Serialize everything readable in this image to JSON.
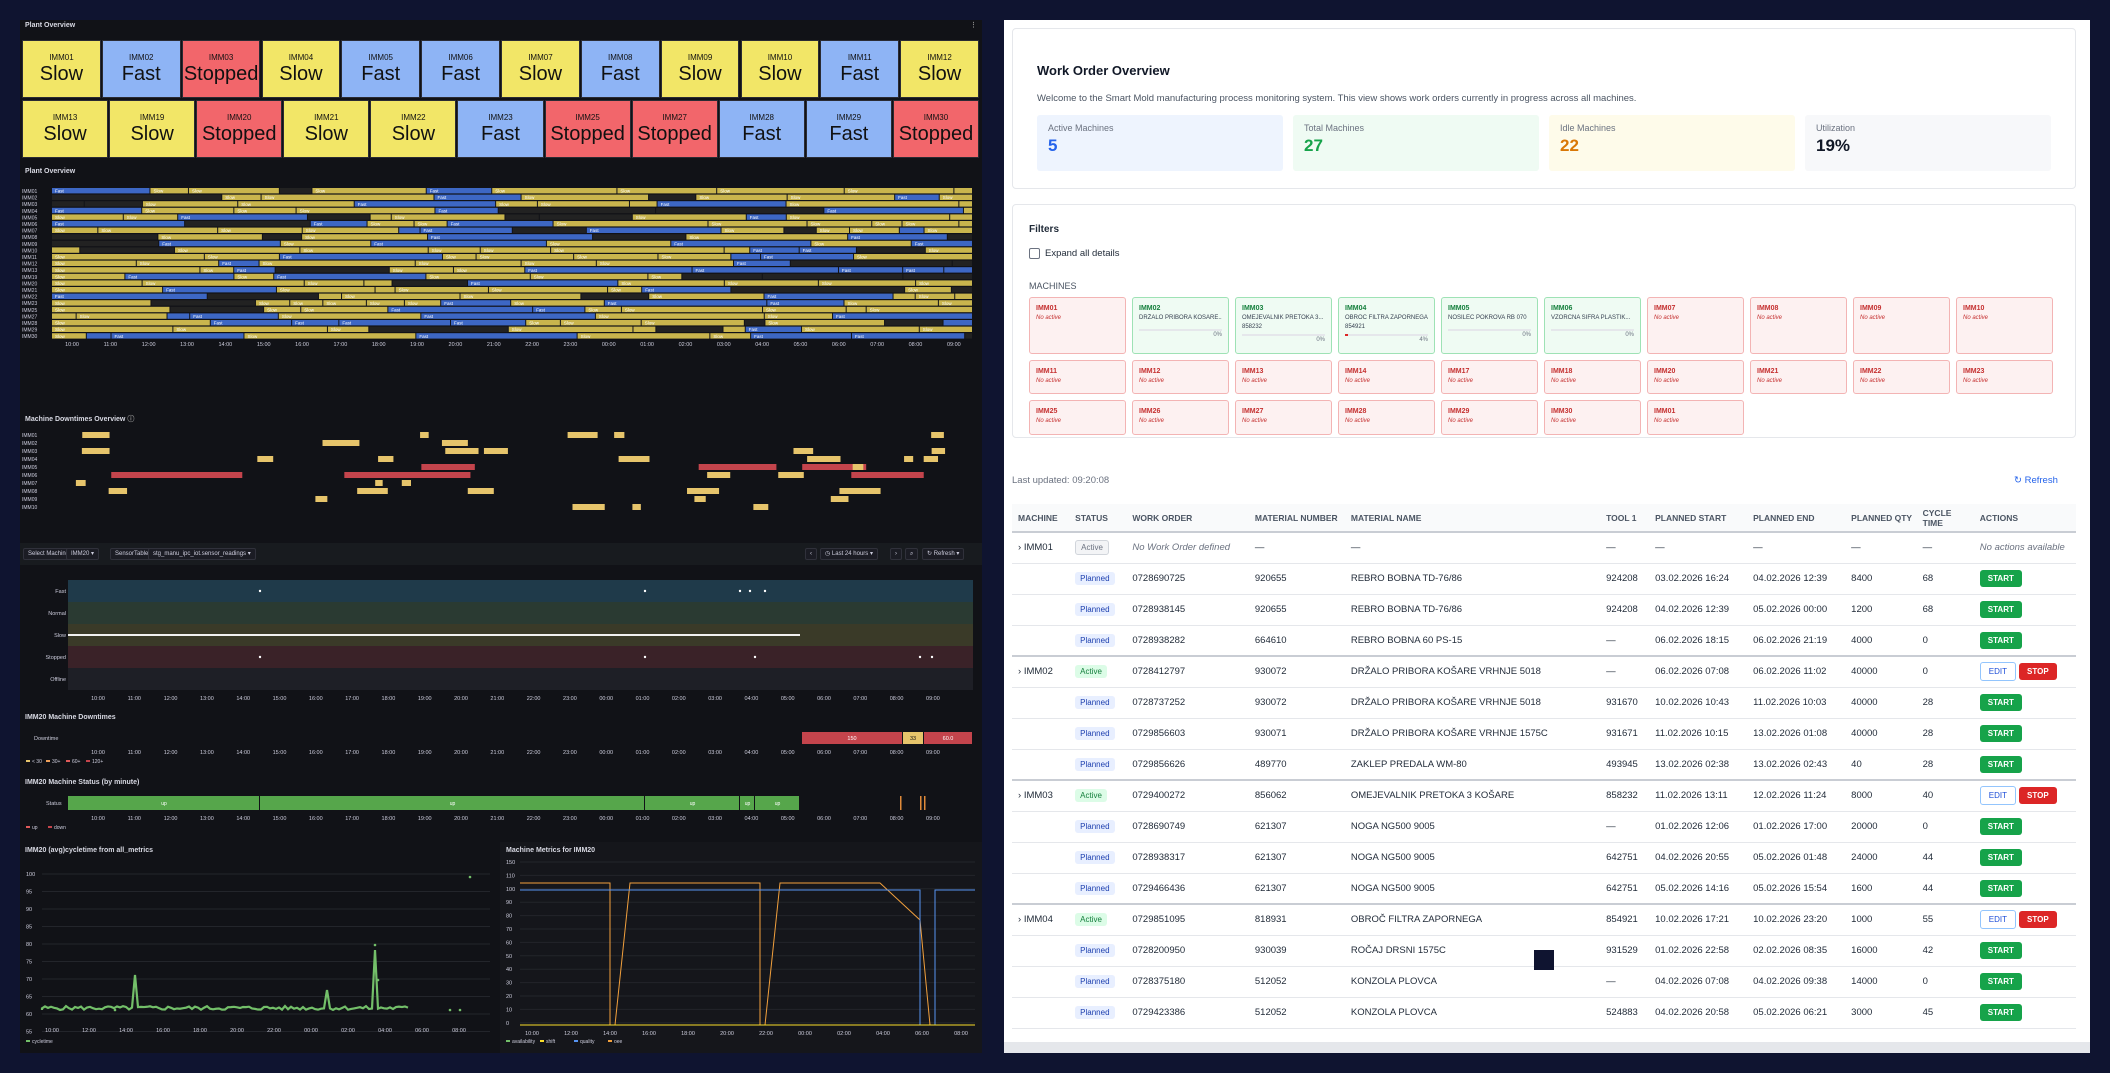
{
  "left": {
    "stat_panel_title": "Plant Overview",
    "timeline_title": "Plant Overview",
    "downtimes_title": "Machine Downtimes Overview",
    "machines_row1": [
      {
        "n": "IMM01",
        "v": "Slow"
      },
      {
        "n": "IMM02",
        "v": "Fast"
      },
      {
        "n": "IMM03",
        "v": "Stopped"
      },
      {
        "n": "IMM04",
        "v": "Slow"
      },
      {
        "n": "IMM05",
        "v": "Fast"
      },
      {
        "n": "IMM06",
        "v": "Fast"
      },
      {
        "n": "IMM07",
        "v": "Slow"
      },
      {
        "n": "IMM08",
        "v": "Fast"
      },
      {
        "n": "IMM09",
        "v": "Slow"
      },
      {
        "n": "IMM10",
        "v": "Slow"
      },
      {
        "n": "IMM11",
        "v": "Fast"
      },
      {
        "n": "IMM12",
        "v": "Slow"
      }
    ],
    "machines_row2": [
      {
        "n": "IMM13",
        "v": "Slow"
      },
      {
        "n": "IMM19",
        "v": "Slow"
      },
      {
        "n": "IMM20",
        "v": "Stopped"
      },
      {
        "n": "IMM21",
        "v": "Slow"
      },
      {
        "n": "IMM22",
        "v": "Slow"
      },
      {
        "n": "IMM23",
        "v": "Fast"
      },
      {
        "n": "IMM25",
        "v": "Stopped"
      },
      {
        "n": "IMM27",
        "v": "Stopped"
      },
      {
        "n": "IMM28",
        "v": "Fast"
      },
      {
        "n": "IMM29",
        "v": "Fast"
      },
      {
        "n": "IMM30",
        "v": "Stopped"
      }
    ],
    "status_colors": {
      "Slow": "#f2e667",
      "Fast": "#8eb4f5",
      "Stopped": "#f2666b"
    },
    "timeline_rows": [
      "IMM01",
      "IMM02",
      "IMM03",
      "IMM04",
      "IMM05",
      "IMM06",
      "IMM07",
      "IMM08",
      "IMM09",
      "IMM10",
      "IMM11",
      "IMM12",
      "IMM13",
      "IMM19",
      "IMM20",
      "IMM21",
      "IMM22",
      "IMM23",
      "IMM25",
      "IMM27",
      "IMM28",
      "IMM29",
      "IMM30"
    ],
    "time_ticks": [
      "10:00",
      "11:00",
      "12:00",
      "13:00",
      "14:00",
      "15:00",
      "16:00",
      "17:00",
      "18:00",
      "19:00",
      "20:00",
      "21:00",
      "22:00",
      "23:00",
      "00:00",
      "01:00",
      "02:00",
      "03:00",
      "04:00",
      "05:00",
      "06:00",
      "07:00",
      "08:00",
      "09:00"
    ],
    "downtime_rows": [
      "IMM01",
      "IMM02",
      "IMM03",
      "IMM04",
      "IMM05",
      "IMM06",
      "IMM07",
      "IMM08",
      "IMM09",
      "IMM10"
    ],
    "controls": {
      "select_label": "Select Machine",
      "select_value": "IMM20",
      "sensor_label": "SensorTable",
      "sensor_value": "stg_manu_ipc_iot.sensor_readings",
      "range": "Last 24 hours",
      "refresh": "Refresh"
    },
    "state_levels": [
      "Fast",
      "Normal",
      "Slow",
      "Stopped",
      "Offline"
    ],
    "imm20_dt_title": "IMM20 Machine Downtimes",
    "imm20_dt_row": "Downtime",
    "imm20_dt_legend": [
      "< 30",
      "30+",
      "60+",
      "120+"
    ],
    "imm20_dt_blocks": [
      "150",
      "33",
      "60.0"
    ],
    "imm20_status_title": "IMM20 Machine Status (by minute)",
    "imm20_status_row": "Status",
    "up_label": "up",
    "status_legend": [
      "up",
      "down"
    ],
    "cycle_title": "IMM20 (avg)cycletime from all_metrics",
    "cycle_yticks": [
      "100",
      "95",
      "90",
      "85",
      "80",
      "75",
      "70",
      "65",
      "60",
      "55"
    ],
    "cycle_xticks": [
      "10:00",
      "12:00",
      "14:00",
      "16:00",
      "18:00",
      "20:00",
      "22:00",
      "00:00",
      "02:00",
      "04:00",
      "06:00",
      "08:00"
    ],
    "cycle_legend": "cycletime",
    "metrics_title": "Machine Metrics for IMM20",
    "metrics_yticks": [
      "150",
      "110",
      "100",
      "90",
      "80",
      "70",
      "60",
      "50",
      "40",
      "30",
      "20",
      "10",
      "0"
    ],
    "metrics_xticks": [
      "10:00",
      "12:00",
      "14:00",
      "16:00",
      "18:00",
      "20:00",
      "22:00",
      "00:00",
      "02:00",
      "04:00",
      "06:00",
      "08:00"
    ],
    "metrics_legend": [
      "availability",
      "shift",
      "quality",
      "oee"
    ]
  },
  "right": {
    "title": "Work Order Overview",
    "subtitle": "Welcome to the Smart Mold manufacturing process monitoring system. This view shows work orders currently in progress across all machines.",
    "stats": [
      {
        "l": "Active Machines",
        "v": "5",
        "c": "#2563eb",
        "bg": "#eef4fe"
      },
      {
        "l": "Total Machines",
        "v": "27",
        "c": "#16a34a",
        "bg": "#effbf3"
      },
      {
        "l": "Idle Machines",
        "v": "22",
        "c": "#d97706",
        "bg": "#fefbea"
      },
      {
        "l": "Utilization",
        "v": "19%",
        "c": "#111827",
        "bg": "#f7f8fa"
      }
    ],
    "filters": "Filters",
    "expand": "Expand all details",
    "machines_label": "MACHINES",
    "machine_cards": [
      {
        "n": "IMM01",
        "d": "No active",
        "a": false
      },
      {
        "n": "IMM02",
        "d": "DRŽALO PRIBORA KOŠARE...",
        "a": true,
        "p": "0%"
      },
      {
        "n": "IMM03",
        "d": "OMEJEVALNIK PRETOKA 3...",
        "d2": "858232",
        "a": true,
        "p": "0%"
      },
      {
        "n": "IMM04",
        "d": "OBROČ FILTRA ZAPORNEGA",
        "d2": "854921",
        "a": true,
        "p": "4%",
        "bar": 0.04
      },
      {
        "n": "IMM05",
        "d": "NOSILEC POKROVA RB 070",
        "a": true,
        "p": "0%"
      },
      {
        "n": "IMM06",
        "d": "VZORČNA ŠIFRA PLASTIK...",
        "a": true,
        "p": "0%"
      },
      {
        "n": "IMM07",
        "d": "No active",
        "a": false
      },
      {
        "n": "IMM08",
        "d": "No active",
        "a": false
      },
      {
        "n": "IMM09",
        "d": "No active",
        "a": false
      },
      {
        "n": "IMM10",
        "d": "No active",
        "a": false
      },
      {
        "n": "IMM11",
        "d": "No active",
        "a": false
      },
      {
        "n": "IMM12",
        "d": "No active",
        "a": false
      },
      {
        "n": "IMM13",
        "d": "No active",
        "a": false
      },
      {
        "n": "IMM14",
        "d": "No active",
        "a": false
      },
      {
        "n": "IMM17",
        "d": "No active",
        "a": false
      },
      {
        "n": "IMM18",
        "d": "No active",
        "a": false
      },
      {
        "n": "IMM20",
        "d": "No active",
        "a": false
      },
      {
        "n": "IMM21",
        "d": "No active",
        "a": false
      },
      {
        "n": "IMM22",
        "d": "No active",
        "a": false
      },
      {
        "n": "IMM23",
        "d": "No active",
        "a": false
      },
      {
        "n": "IMM25",
        "d": "No active",
        "a": false
      },
      {
        "n": "IMM26",
        "d": "No active",
        "a": false
      },
      {
        "n": "IMM27",
        "d": "No active",
        "a": false
      },
      {
        "n": "IMM28",
        "d": "No active",
        "a": false
      },
      {
        "n": "IMM29",
        "d": "No active",
        "a": false
      },
      {
        "n": "IMM30",
        "d": "No active",
        "a": false
      },
      {
        "n": "IMM01",
        "d": "No active",
        "a": false
      }
    ],
    "last_updated": "Last updated: 09:20:08",
    "refresh": "Refresh",
    "columns": [
      "MACHINE",
      "STATUS",
      "WORK ORDER",
      "MATERIAL NUMBER",
      "MATERIAL NAME",
      "TOOL 1",
      "PLANNED START",
      "PLANNED END",
      "PLANNED QTY",
      "CYCLE TIME",
      "ACTIONS"
    ],
    "rows": [
      {
        "m": "IMM01",
        "s": "Active",
        "s_idle": true,
        "wo": "No Work Order defined",
        "mn": "—",
        "name": "—",
        "tool": "—",
        "ps": "—",
        "pe": "—",
        "q": "—",
        "ct": "—",
        "act": "none",
        "none": "No actions available",
        "grp": true
      },
      {
        "m": "",
        "s": "Planned",
        "wo": "0728690725",
        "mn": "920655",
        "name": "REBRO BOBNA TD-76/86",
        "tool": "924208",
        "ps": "03.02.2026 16:24",
        "pe": "04.02.2026 12:39",
        "q": "8400",
        "ct": "68",
        "act": "start"
      },
      {
        "m": "",
        "s": "Planned",
        "wo": "0728938145",
        "mn": "920655",
        "name": "REBRO BOBNA TD-76/86",
        "tool": "924208",
        "ps": "04.02.2026 12:39",
        "pe": "05.02.2026 00:00",
        "q": "1200",
        "ct": "68",
        "act": "start"
      },
      {
        "m": "",
        "s": "Planned",
        "wo": "0728938282",
        "mn": "664610",
        "name": "REBRO BOBNA 60 PS-15",
        "tool": "—",
        "ps": "06.02.2026 18:15",
        "pe": "06.02.2026 21:19",
        "q": "4000",
        "ct": "0",
        "act": "start"
      },
      {
        "m": "IMM02",
        "s": "Active",
        "wo": "0728412797",
        "mn": "930072",
        "name": "DRŽALO PRIBORA KOŠARE VRHNJE 5018",
        "tool": "—",
        "ps": "06.02.2026 07:08",
        "pe": "06.02.2026 11:02",
        "q": "40000",
        "ct": "0",
        "act": "editstop",
        "grp": true
      },
      {
        "m": "",
        "s": "Planned",
        "wo": "0728737252",
        "mn": "930072",
        "name": "DRŽALO PRIBORA KOŠARE VRHNJE 5018",
        "tool": "931670",
        "ps": "10.02.2026 10:43",
        "pe": "11.02.2026 10:03",
        "q": "40000",
        "ct": "28",
        "act": "start"
      },
      {
        "m": "",
        "s": "Planned",
        "wo": "0729856603",
        "mn": "930071",
        "name": "DRŽALO PRIBORA KOŠARE VRHNJE 1575C",
        "tool": "931671",
        "ps": "11.02.2026 10:15",
        "pe": "13.02.2026 01:08",
        "q": "40000",
        "ct": "28",
        "act": "start"
      },
      {
        "m": "",
        "s": "Planned",
        "wo": "0729856626",
        "mn": "489770",
        "name": "ZAKLEP PREDALA WM-80",
        "tool": "493945",
        "ps": "13.02.2026 02:38",
        "pe": "13.02.2026 02:43",
        "q": "40",
        "ct": "28",
        "act": "start"
      },
      {
        "m": "IMM03",
        "s": "Active",
        "wo": "0729400272",
        "mn": "856062",
        "name": "OMEJEVALNIK PRETOKA 3 KOŠARE",
        "tool": "858232",
        "ps": "11.02.2026 13:11",
        "pe": "12.02.2026 11:24",
        "q": "8000",
        "ct": "40",
        "act": "editstop",
        "grp": true
      },
      {
        "m": "",
        "s": "Planned",
        "wo": "0728690749",
        "mn": "621307",
        "name": "NOGA NG500 9005",
        "tool": "—",
        "ps": "01.02.2026 12:06",
        "pe": "01.02.2026 17:00",
        "q": "20000",
        "ct": "0",
        "act": "start"
      },
      {
        "m": "",
        "s": "Planned",
        "wo": "0728938317",
        "mn": "621307",
        "name": "NOGA NG500 9005",
        "tool": "642751",
        "ps": "04.02.2026 20:55",
        "pe": "05.02.2026 01:48",
        "q": "24000",
        "ct": "44",
        "act": "start"
      },
      {
        "m": "",
        "s": "Planned",
        "wo": "0729466436",
        "mn": "621307",
        "name": "NOGA NG500 9005",
        "tool": "642751",
        "ps": "05.02.2026 14:16",
        "pe": "05.02.2026 15:54",
        "q": "1600",
        "ct": "44",
        "act": "start"
      },
      {
        "m": "IMM04",
        "s": "Active",
        "wo": "0729851095",
        "mn": "818931",
        "name": "OBROČ FILTRA ZAPORNEGA",
        "tool": "854921",
        "ps": "10.02.2026 17:21",
        "pe": "10.02.2026 23:20",
        "q": "1000",
        "ct": "55",
        "act": "editstop",
        "grp": true
      },
      {
        "m": "",
        "s": "Planned",
        "wo": "0728200950",
        "mn": "930039",
        "name": "ROČAJ DRSNI 1575C",
        "tool": "931529",
        "ps": "01.02.2026 22:58",
        "pe": "02.02.2026 08:35",
        "q": "16000",
        "ct": "42",
        "act": "start"
      },
      {
        "m": "",
        "s": "Planned",
        "wo": "0728375180",
        "mn": "512052",
        "name": "KONZOLA PLOVCA",
        "tool": "—",
        "ps": "04.02.2026 07:08",
        "pe": "04.02.2026 09:38",
        "q": "14000",
        "ct": "0",
        "act": "start"
      },
      {
        "m": "",
        "s": "Planned",
        "wo": "0729423386",
        "mn": "512052",
        "name": "KONZOLA PLOVCA",
        "tool": "524883",
        "ps": "04.02.2026 20:58",
        "pe": "05.02.2026 06:21",
        "q": "3000",
        "ct": "45",
        "act": "start"
      }
    ],
    "btn_start": "START",
    "btn_edit": "EDIT",
    "btn_stop": "STOP"
  }
}
